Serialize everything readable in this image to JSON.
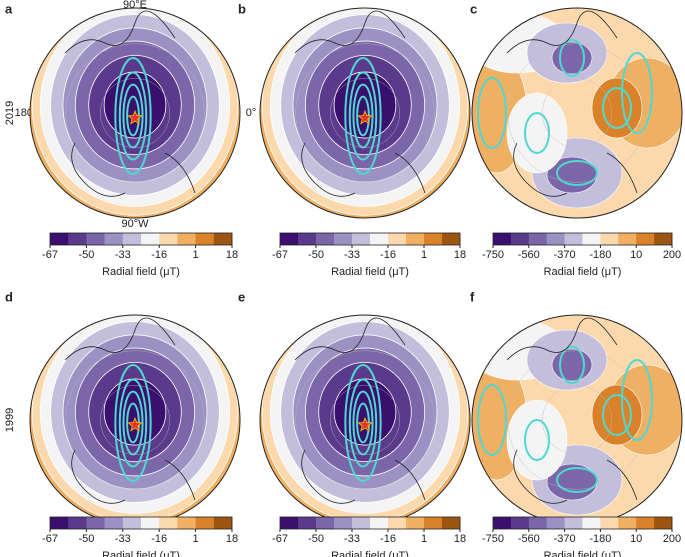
{
  "row_labels": [
    "2019",
    "1999"
  ],
  "axis_labels": {
    "top": "90°E",
    "left": "180°",
    "right": "0°",
    "bottom": "90°W"
  },
  "colorbar_colors": [
    "#3b0f6e",
    "#5b3a8c",
    "#7a66a8",
    "#9c91c3",
    "#c3bedc",
    "#f4f4f4",
    "#fbd9ad",
    "#f0b063",
    "#d9822a",
    "#9c5612"
  ],
  "panels": [
    {
      "label": "a",
      "colorbar": {
        "ticks": [
          -67,
          -50,
          -33,
          -16,
          1,
          18
        ],
        "title": "Radial field (μT)"
      }
    },
    {
      "label": "b",
      "colorbar": {
        "ticks": [
          -67,
          -50,
          -33,
          -16,
          1,
          18
        ],
        "title": "Radial field (μT)"
      }
    },
    {
      "label": "c",
      "colorbar": {
        "ticks": [
          -750,
          -560,
          -370,
          -180,
          10,
          200
        ],
        "title": "Radial field (μT)"
      }
    },
    {
      "label": "d",
      "colorbar": {
        "ticks": [
          -67,
          -50,
          -33,
          -16,
          1,
          18
        ],
        "title": "Radial field (μT)"
      }
    },
    {
      "label": "e",
      "colorbar": {
        "ticks": [
          -67,
          -50,
          -33,
          -16,
          1,
          18
        ],
        "title": "Radial field (μT)"
      }
    },
    {
      "label": "f",
      "colorbar": {
        "ticks": [
          -750,
          -560,
          -370,
          -180,
          10,
          200
        ],
        "title": "Radial field (μT)"
      }
    }
  ]
}
